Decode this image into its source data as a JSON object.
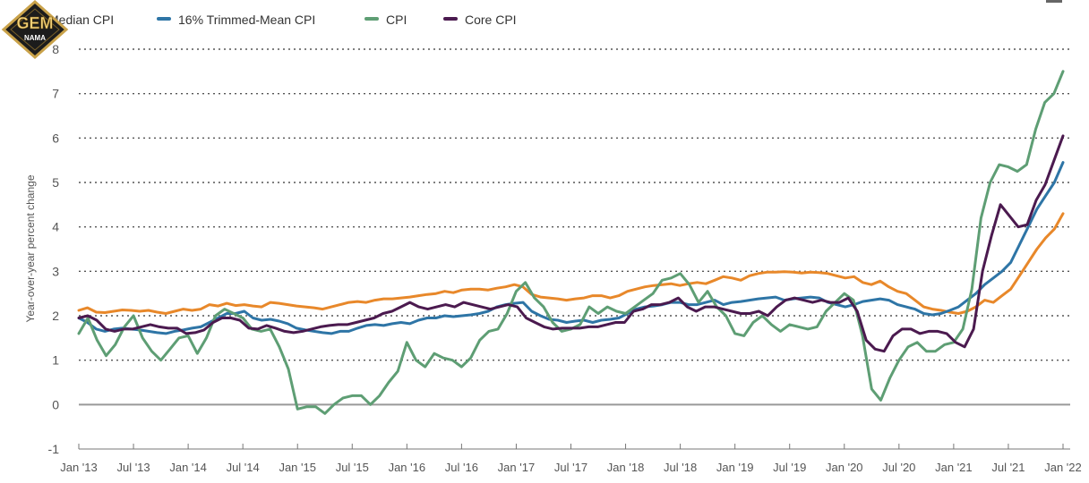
{
  "legend": {
    "median": "Median CPI",
    "trimmed": "16% Trimmed-Mean CPI",
    "cpi": "CPI",
    "core": "Core CPI"
  },
  "logo": {
    "line1": "GEM",
    "line2": "NAMA"
  },
  "colors": {
    "median": "#E8882A",
    "trimmed": "#2E75A6",
    "cpi": "#5E9E74",
    "core": "#4B1A4F",
    "grid": "#555555",
    "zero": "#999999"
  },
  "chart_data": {
    "type": "line",
    "title": "",
    "xlabel": "",
    "ylabel": "Year-over-year percent change",
    "ylim": [
      -1,
      8
    ],
    "yticks": [
      -1,
      0,
      1,
      2,
      3,
      4,
      5,
      6,
      7,
      8
    ],
    "xticks": [
      "Jan '13",
      "Jul '13",
      "Jan '14",
      "Jul '14",
      "Jan '15",
      "Jul '15",
      "Jan '16",
      "Jul '16",
      "Jan '17",
      "Jul '17",
      "Jan '18",
      "Jul '18",
      "Jan '19",
      "Jul '19",
      "Jan '20",
      "Jul '20",
      "Jan '21",
      "Jul '21",
      "Jan '22"
    ],
    "x_start": "Jan 2013",
    "x_end": "Jan 2022",
    "series": [
      {
        "name": "Median CPI",
        "color": "#E8882A",
        "values": [
          2.12,
          2.18,
          2.08,
          2.07,
          2.1,
          2.13,
          2.12,
          2.1,
          2.12,
          2.08,
          2.05,
          2.1,
          2.15,
          2.12,
          2.15,
          2.25,
          2.22,
          2.28,
          2.23,
          2.25,
          2.22,
          2.2,
          2.3,
          2.28,
          2.25,
          2.22,
          2.2,
          2.18,
          2.15,
          2.2,
          2.25,
          2.3,
          2.32,
          2.3,
          2.35,
          2.38,
          2.38,
          2.4,
          2.42,
          2.45,
          2.48,
          2.5,
          2.55,
          2.52,
          2.58,
          2.6,
          2.6,
          2.58,
          2.62,
          2.65,
          2.7,
          2.65,
          2.48,
          2.42,
          2.4,
          2.38,
          2.35,
          2.38,
          2.4,
          2.45,
          2.45,
          2.4,
          2.45,
          2.55,
          2.6,
          2.65,
          2.68,
          2.7,
          2.72,
          2.68,
          2.72,
          2.75,
          2.72,
          2.8,
          2.88,
          2.85,
          2.8,
          2.9,
          2.95,
          2.98,
          2.98,
          2.99,
          2.98,
          2.96,
          2.98,
          2.97,
          2.95,
          2.9,
          2.85,
          2.88,
          2.75,
          2.7,
          2.78,
          2.65,
          2.55,
          2.5,
          2.35,
          2.2,
          2.15,
          2.12,
          2.08,
          2.05,
          2.1,
          2.2,
          2.35,
          2.3,
          2.45,
          2.6,
          2.9,
          3.2,
          3.5,
          3.75,
          3.95,
          4.3
        ]
      },
      {
        "name": "16% Trimmed-Mean CPI",
        "color": "#2E75A6",
        "values": [
          1.95,
          1.85,
          1.7,
          1.65,
          1.7,
          1.72,
          1.7,
          1.68,
          1.65,
          1.62,
          1.6,
          1.65,
          1.68,
          1.72,
          1.75,
          1.85,
          1.95,
          2.05,
          2.05,
          2.1,
          1.95,
          1.9,
          1.92,
          1.88,
          1.82,
          1.72,
          1.68,
          1.65,
          1.62,
          1.6,
          1.65,
          1.65,
          1.72,
          1.78,
          1.8,
          1.78,
          1.82,
          1.85,
          1.82,
          1.9,
          1.95,
          1.95,
          2.0,
          1.98,
          2.0,
          2.02,
          2.05,
          2.1,
          2.2,
          2.25,
          2.28,
          2.3,
          2.1,
          2.0,
          1.92,
          1.9,
          1.85,
          1.88,
          1.9,
          1.85,
          1.9,
          1.92,
          1.95,
          2.05,
          2.15,
          2.2,
          2.22,
          2.25,
          2.3,
          2.3,
          2.25,
          2.25,
          2.3,
          2.35,
          2.25,
          2.3,
          2.32,
          2.35,
          2.38,
          2.4,
          2.42,
          2.35,
          2.38,
          2.4,
          2.42,
          2.4,
          2.3,
          2.25,
          2.2,
          2.25,
          2.32,
          2.35,
          2.38,
          2.35,
          2.25,
          2.2,
          2.15,
          2.05,
          2.02,
          2.05,
          2.12,
          2.2,
          2.35,
          2.5,
          2.7,
          2.85,
          3.0,
          3.2,
          3.6,
          4.0,
          4.4,
          4.7,
          5.0,
          5.45
        ]
      },
      {
        "name": "CPI",
        "color": "#5E9E74",
        "values": [
          1.6,
          1.95,
          1.45,
          1.1,
          1.35,
          1.75,
          2.0,
          1.5,
          1.2,
          1.0,
          1.25,
          1.5,
          1.55,
          1.15,
          1.5,
          2.0,
          2.15,
          2.05,
          1.95,
          1.7,
          1.65,
          1.7,
          1.3,
          0.8,
          -0.1,
          -0.05,
          -0.05,
          -0.2,
          0.0,
          0.15,
          0.2,
          0.2,
          0.0,
          0.2,
          0.5,
          0.75,
          1.4,
          1.0,
          0.85,
          1.15,
          1.05,
          1.0,
          0.85,
          1.05,
          1.45,
          1.65,
          1.7,
          2.05,
          2.55,
          2.75,
          2.4,
          2.2,
          1.85,
          1.65,
          1.7,
          1.8,
          2.2,
          2.05,
          2.2,
          2.1,
          2.05,
          2.2,
          2.35,
          2.5,
          2.8,
          2.85,
          2.95,
          2.7,
          2.3,
          2.55,
          2.2,
          2.0,
          1.6,
          1.55,
          1.85,
          2.0,
          1.8,
          1.65,
          1.8,
          1.75,
          1.7,
          1.75,
          2.1,
          2.3,
          2.5,
          2.35,
          1.55,
          0.35,
          0.1,
          0.6,
          1.0,
          1.3,
          1.4,
          1.2,
          1.2,
          1.35,
          1.4,
          1.7,
          2.6,
          4.2,
          5.0,
          5.4,
          5.35,
          5.25,
          5.4,
          6.2,
          6.8,
          7.0,
          7.5
        ]
      },
      {
        "name": "Core CPI",
        "color": "#4B1A4F",
        "values": [
          1.95,
          2.0,
          1.9,
          1.7,
          1.65,
          1.7,
          1.7,
          1.75,
          1.8,
          1.75,
          1.72,
          1.72,
          1.6,
          1.62,
          1.68,
          1.85,
          1.95,
          1.95,
          1.9,
          1.72,
          1.7,
          1.78,
          1.72,
          1.65,
          1.62,
          1.65,
          1.7,
          1.75,
          1.78,
          1.8,
          1.8,
          1.85,
          1.9,
          1.95,
          2.05,
          2.1,
          2.2,
          2.3,
          2.2,
          2.15,
          2.2,
          2.25,
          2.2,
          2.3,
          2.25,
          2.2,
          2.15,
          2.2,
          2.25,
          2.2,
          1.95,
          1.85,
          1.75,
          1.7,
          1.72,
          1.72,
          1.72,
          1.75,
          1.75,
          1.8,
          1.85,
          1.85,
          2.1,
          2.15,
          2.25,
          2.25,
          2.3,
          2.4,
          2.2,
          2.1,
          2.2,
          2.2,
          2.15,
          2.1,
          2.05,
          2.05,
          2.1,
          2.0,
          2.2,
          2.35,
          2.4,
          2.35,
          2.3,
          2.35,
          2.3,
          2.3,
          2.4,
          2.1,
          1.45,
          1.25,
          1.2,
          1.55,
          1.7,
          1.7,
          1.6,
          1.65,
          1.65,
          1.6,
          1.4,
          1.3,
          1.7,
          3.0,
          3.8,
          4.5,
          4.25,
          4.0,
          4.05,
          4.6,
          4.95,
          5.5,
          6.05
        ]
      }
    ]
  }
}
